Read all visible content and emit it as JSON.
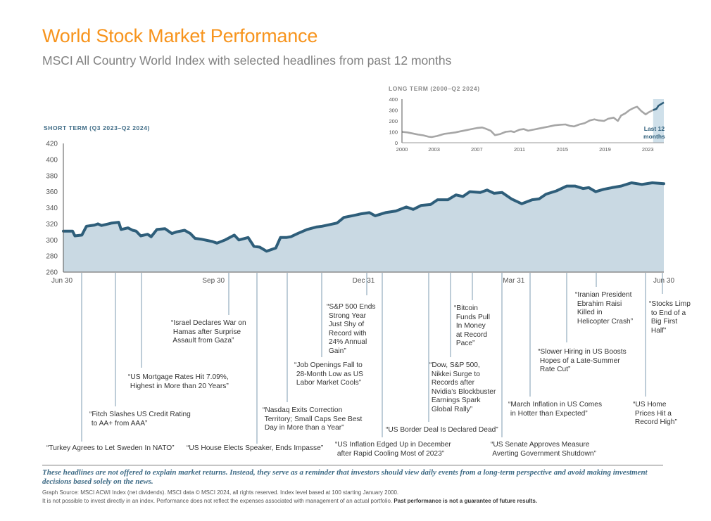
{
  "header": {
    "title": "World Stock Market Performance",
    "subtitle": "MSCI All Country World Index with selected headlines from past 12 months"
  },
  "colors": {
    "title": "#f7941d",
    "line": "#2e5e7a",
    "area": "#c9d9e3",
    "long_line": "#a6a6a6",
    "highlight_band": "#cfe0ea"
  },
  "chart_data": [
    {
      "type": "area",
      "title": "SHORT TERM (Q3 2023–Q2 2024)",
      "xlabel": "",
      "ylabel": "",
      "ylim": [
        260,
        420
      ],
      "yticks": [
        260,
        280,
        300,
        320,
        340,
        360,
        380,
        400,
        420
      ],
      "xtick_labels": [
        "Jun 30",
        "Sep 30",
        "Dec 31",
        "Mar 31",
        "Jun 30"
      ],
      "x_domain_weeks": [
        0,
        52
      ],
      "xtick_weeks": [
        0,
        13,
        26,
        39,
        52
      ],
      "grid": false,
      "x": [
        0,
        0.8,
        1.0,
        1.6,
        2.0,
        2.7,
        3.0,
        3.3,
        3.9,
        4.2,
        4.8,
        5.0,
        5.6,
        6.0,
        6.3,
        6.7,
        7.3,
        7.6,
        8.1,
        8.8,
        9.4,
        9.8,
        10.5,
        11.0,
        11.4,
        11.9,
        12.9,
        13.3,
        14.0,
        14.8,
        15.2,
        16.0,
        16.5,
        17.0,
        17.6,
        18.4,
        18.8,
        19.3,
        19.7,
        20.3,
        21.1,
        21.9,
        22.4,
        22.9,
        23.7,
        24.3,
        25.0,
        25.8,
        26.5,
        27.0,
        27.9,
        28.8,
        29.7,
        30.3,
        31.0,
        31.8,
        32.4,
        33.3,
        34.0,
        34.6,
        35.2,
        36.1,
        36.7,
        37.3,
        38.0,
        38.8,
        39.7,
        40.6,
        41.2,
        41.8,
        42.7,
        43.6,
        44.3,
        45.0,
        45.5,
        46.1,
        46.8,
        47.5,
        48.3,
        49.2,
        50.1,
        51.0,
        52.0
      ],
      "values": [
        311,
        311,
        305,
        306,
        317,
        318.5,
        320,
        318,
        320,
        321,
        322,
        313,
        315,
        312,
        311,
        305,
        307,
        304,
        313,
        314,
        308,
        310,
        312,
        308,
        302,
        301,
        298,
        296,
        300,
        306,
        300,
        303,
        292,
        291,
        286,
        290,
        303,
        303,
        304,
        308,
        313,
        316,
        317,
        318.5,
        321,
        328,
        330,
        332.5,
        334,
        330,
        334,
        336,
        341,
        338,
        343,
        344,
        350,
        350,
        356,
        354,
        360,
        359,
        362,
        358,
        359,
        351,
        345,
        350,
        351,
        357,
        361,
        367,
        367,
        364,
        365,
        360,
        363,
        365,
        367,
        371,
        369,
        371,
        370
      ]
    },
    {
      "type": "line",
      "title": "LONG TERM (2000–Q2 2024)",
      "ylim": [
        0,
        400
      ],
      "yticks": [
        0,
        100,
        200,
        300,
        400
      ],
      "xtick_labels": [
        "2000",
        "2003",
        "2007",
        "2011",
        "2015",
        "2019",
        "2023"
      ],
      "xlim": [
        2000,
        2024.5
      ],
      "highlight": {
        "from": 2023.5,
        "to": 2024.5,
        "label": "Last 12 months"
      },
      "x": [
        2000,
        2000.5,
        2001,
        2001.5,
        2002,
        2002.5,
        2002.8,
        2003.3,
        2004,
        2004.5,
        2005,
        2005.5,
        2006,
        2006.5,
        2007,
        2007.5,
        2007.8,
        2008.3,
        2008.7,
        2009.2,
        2009.7,
        2010.2,
        2010.5,
        2011,
        2011.4,
        2011.8,
        2012.3,
        2012.8,
        2013.3,
        2013.8,
        2014.3,
        2014.8,
        2015.3,
        2015.7,
        2016.1,
        2016.6,
        2017.1,
        2017.6,
        2018.0,
        2018.4,
        2018.9,
        2019.3,
        2019.8,
        2020.2,
        2020.5,
        2020.9,
        2021.3,
        2021.7,
        2022.0,
        2022.4,
        2022.8,
        2023.1,
        2023.5,
        2023.8,
        2024.0,
        2024.5
      ],
      "values": [
        100,
        95,
        85,
        75,
        68,
        55,
        52,
        62,
        82,
        88,
        95,
        105,
        115,
        125,
        135,
        140,
        130,
        110,
        70,
        80,
        100,
        105,
        98,
        120,
        125,
        110,
        120,
        130,
        140,
        150,
        160,
        165,
        168,
        155,
        150,
        168,
        180,
        205,
        215,
        205,
        200,
        220,
        230,
        200,
        250,
        270,
        300,
        320,
        330,
        290,
        260,
        280,
        300,
        310,
        340,
        370
      ]
    }
  ],
  "headlines": [
    {
      "text": "“Turkey Agrees to Let Sweden In NATO”"
    },
    {
      "text": "“Fitch Slashes US Credit Rating\n to AA+ from AAA”"
    },
    {
      "text": "“US Mortgage Rates Hit 7.09%,\n Highest in More than 20 Years”"
    },
    {
      "text": "“Israel Declares War on\n Hamas after Surprise\n Assault from Gaza”"
    },
    {
      "text": "“US House Elects Speaker, Ends Impasse”"
    },
    {
      "text": "“Nasdaq Exits Correction\n Territory; Small Caps See Best\n Day in More than a Year”"
    },
    {
      "text": "“Job Openings Fall to\n 28-Month Low as US\n Labor Market Cools”"
    },
    {
      "text": "“S&P 500 Ends\n Strong Year\n Just Shy of\n Record with\n 24% Annual\n Gain”"
    },
    {
      "text": "“US Inflation Edged Up in December\n after Rapid Cooling Most of 2023”"
    },
    {
      "text": "“US Border Deal Is Declared Dead”"
    },
    {
      "text": "“Dow, S&P 500,\n Nikkei Surge to\n Records after\n Nvidia’s Blockbuster\n Earnings Spark\n Global Rally”"
    },
    {
      "text": "“Bitcoin\n Funds Pull\n In Money\n at Record\n Pace”"
    },
    {
      "text": "“US Senate Approves Measure\n Averting Government Shutdown”"
    },
    {
      "text": "“March Inflation in US Comes\n in Hotter than Expected”"
    },
    {
      "text": "“Slower Hiring in US Boosts\n Hopes of a Late-Summer\n Rate Cut”"
    },
    {
      "text": "“Iranian President\n Ebrahim Raisi\n Killed in\n Helicopter Crash”"
    },
    {
      "text": "“US Home\n Prices Hit a\n Record High”"
    },
    {
      "text": "“Stocks Limp\n to End of a\n Big First\n Half”"
    }
  ],
  "footer": {
    "disclaimer": "These headlines are not offered to explain market returns. Instead, they serve as a reminder that investors should view daily events from a long-term perspective and avoid making investment decisions based solely on the news.",
    "source": "Graph Source: MSCI ACWI Index (net dividends). MSCI data © MSCI 2024, all rights reserved. Index level based at 100 starting January 2000.",
    "note": "It is not possible to invest directly in an index. Performance does not reflect the expenses associated with management of an actual portfolio.",
    "note_bold": "Past performance is not a guarantee of future results."
  }
}
